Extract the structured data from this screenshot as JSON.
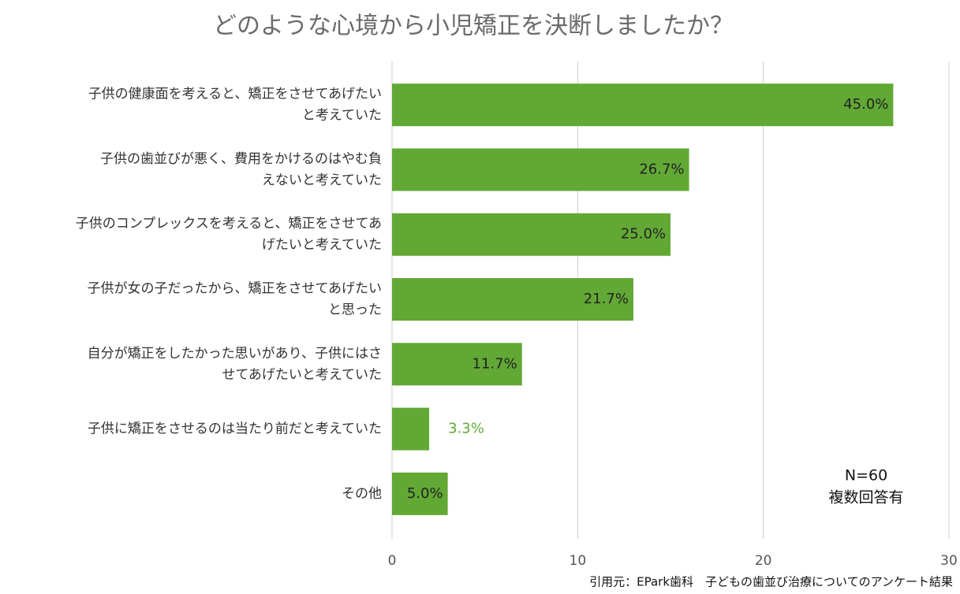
{
  "chart_data": {
    "type": "barh",
    "title": "どのような心境から小児矯正を決断しましたか？",
    "categories": [
      "子供の健康面を考えると、矯正をさせてあげたい\nと考えていた",
      "子供の歯並びが悪く、費用をかけるのはやむ負\nえないと考えていた",
      "子供のコンプレックスを考えると、矯正をさせてあ\nげたいと考えていた",
      "子供が女の子だったから、矯正をさせてあげたい\nと思った",
      "自分が矯正をしたかった思いがあり、子供にはさ\nせてあげたいと考えていた",
      "子供に矯正をさせるのは当たり前だと考えていた",
      "その他"
    ],
    "values": [
      27,
      16,
      15,
      13,
      7,
      2,
      3
    ],
    "value_labels": [
      "45.0%",
      "26.7%",
      "25.0%",
      "21.7%",
      "11.7%",
      "3.3%",
      "5.0%"
    ],
    "color": "#62a835",
    "xlim": [
      0,
      30
    ],
    "xticks": [
      0,
      10,
      20,
      30
    ],
    "grid": true,
    "annotations": [
      "N=60",
      "複数回答有"
    ],
    "source": "引用元：EPark歯科　子どもの歯並び治療についてのアンケート結果"
  }
}
